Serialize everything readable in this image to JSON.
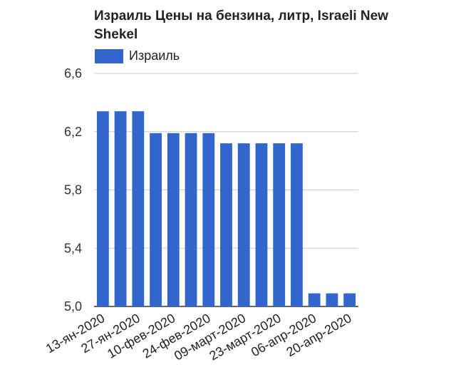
{
  "chart_data": {
    "type": "bar",
    "title": "Израиль Цены на бензина, литр, Israeli New Shekel",
    "legend": {
      "position": "top-left",
      "entries": [
        "Израиль"
      ]
    },
    "series": [
      {
        "name": "Израиль",
        "color": "#3366cc",
        "values": [
          6.34,
          6.34,
          6.34,
          6.19,
          6.19,
          6.19,
          6.19,
          6.12,
          6.12,
          6.12,
          6.12,
          6.12,
          5.09,
          5.09,
          5.09
        ]
      }
    ],
    "categories": [
      "13-ян-2020",
      "",
      "27-ян-2020",
      "",
      "10-фев-2020",
      "",
      "24-фев-2020",
      "",
      "09-март-2020",
      "",
      "23-март-2020",
      "",
      "06-апр-2020",
      "",
      "20-апр-2020"
    ],
    "ylim": [
      5.0,
      6.6
    ],
    "yticks": [
      "5,0",
      "5,4",
      "5,8",
      "6,2",
      "6,6"
    ],
    "ytick_values": [
      5.0,
      5.4,
      5.8,
      6.2,
      6.6
    ],
    "grid": true,
    "xlabel": "",
    "ylabel": ""
  }
}
